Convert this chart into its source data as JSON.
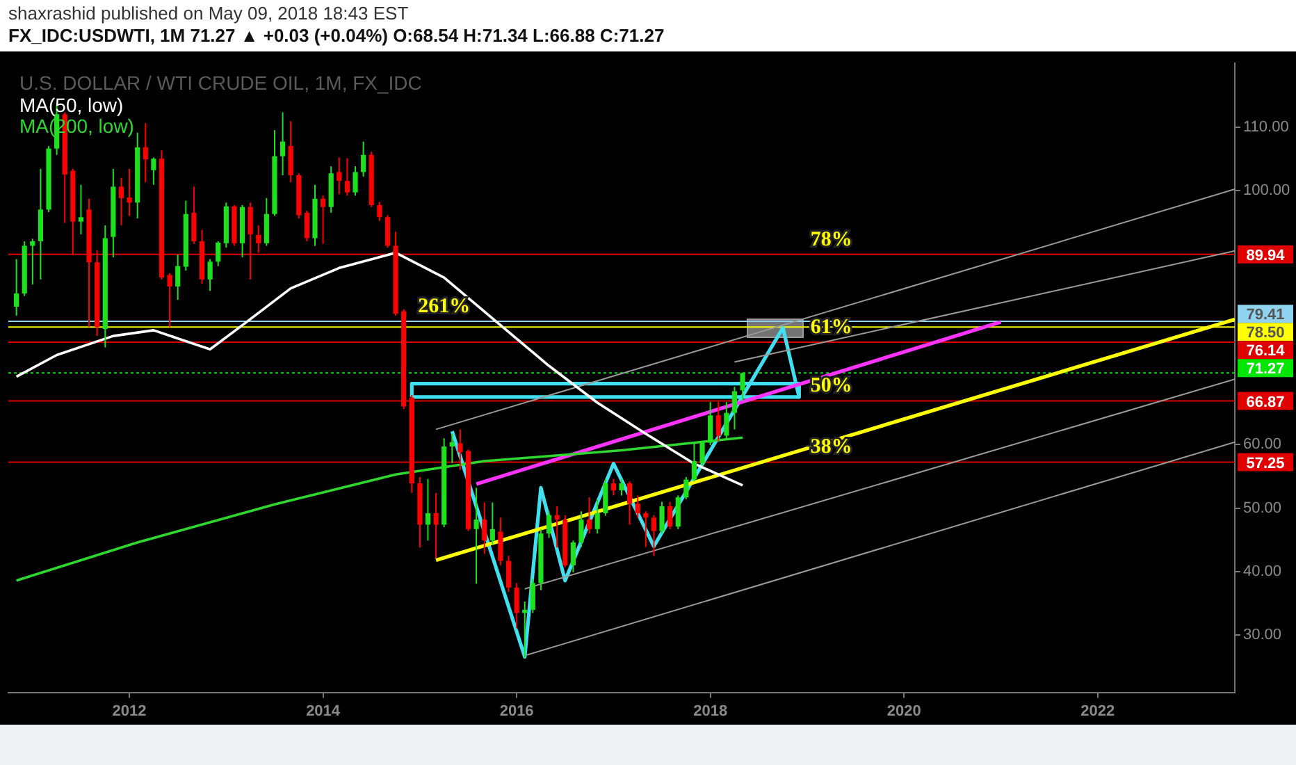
{
  "chart_data": {
    "type": "candlestick",
    "title": "U.S. DOLLAR / WTI CRUDE OIL, 1M, FX_IDC",
    "subtitle": "FX_IDC:USDWTI, 1M 71.27 ▲ +0.03 (+0.04%) O:68.54 H:71.34 L:66.88 C:71.27",
    "annotations": [
      "shaxrashid published on May 09, 2018 18:43 EST",
      {
        "text": "78%",
        "x": "2019-04",
        "y": 89.94
      },
      {
        "text": "261%",
        "x": "2015-04",
        "y": 79.41
      },
      {
        "text": "61%",
        "x": "2019-04",
        "y": 76.14
      },
      {
        "text": "50%",
        "x": "2019-04",
        "y": 66.87
      },
      {
        "text": "38%",
        "x": "2019-04",
        "y": 57.25
      }
    ],
    "x": [
      "2010-11",
      "2010-12",
      "2011-01",
      "2011-02",
      "2011-03",
      "2011-04",
      "2011-05",
      "2011-06",
      "2011-07",
      "2011-08",
      "2011-09",
      "2011-10",
      "2011-11",
      "2011-12",
      "2012-01",
      "2012-02",
      "2012-03",
      "2012-04",
      "2012-05",
      "2012-06",
      "2012-07",
      "2012-08",
      "2012-09",
      "2012-10",
      "2012-11",
      "2012-12",
      "2013-01",
      "2013-02",
      "2013-03",
      "2013-04",
      "2013-05",
      "2013-06",
      "2013-07",
      "2013-08",
      "2013-09",
      "2013-10",
      "2013-11",
      "2013-12",
      "2014-01",
      "2014-02",
      "2014-03",
      "2014-04",
      "2014-05",
      "2014-06",
      "2014-07",
      "2014-08",
      "2014-09",
      "2014-10",
      "2014-11",
      "2014-12",
      "2015-01",
      "2015-02",
      "2015-03",
      "2015-04",
      "2015-05",
      "2015-06",
      "2015-07",
      "2015-08",
      "2015-09",
      "2015-10",
      "2015-11",
      "2015-12",
      "2016-01",
      "2016-02",
      "2016-03",
      "2016-04",
      "2016-05",
      "2016-06",
      "2016-07",
      "2016-08",
      "2016-09",
      "2016-10",
      "2016-11",
      "2016-12",
      "2017-01",
      "2017-02",
      "2017-03",
      "2017-04",
      "2017-05",
      "2017-06",
      "2017-07",
      "2017-08",
      "2017-09",
      "2017-10",
      "2017-11",
      "2017-12",
      "2018-01",
      "2018-02",
      "2018-03",
      "2018-04",
      "2018-05"
    ],
    "ohlc": [
      [
        81.7,
        89.2,
        80.3,
        83.8
      ],
      [
        83.8,
        92.0,
        83.4,
        91.3
      ],
      [
        91.3,
        92.4,
        85.2,
        92.0
      ],
      [
        92.0,
        103.4,
        86.0,
        97.0
      ],
      [
        97.0,
        107.0,
        96.6,
        106.6
      ],
      [
        106.6,
        113.4,
        105.6,
        112.0
      ],
      [
        112.0,
        112.3,
        94.9,
        102.5
      ],
      [
        103.1,
        103.4,
        89.9,
        95.1
      ],
      [
        95.1,
        100.9,
        93.1,
        95.8
      ],
      [
        97.0,
        98.7,
        78.5,
        88.7
      ],
      [
        88.7,
        90.6,
        77.1,
        78.5
      ],
      [
        78.2,
        94.5,
        75.3,
        92.5
      ],
      [
        92.7,
        103.4,
        89.5,
        100.6
      ],
      [
        100.6,
        102.0,
        94.5,
        98.8
      ],
      [
        98.9,
        103.4,
        96.0,
        98.1
      ],
      [
        98.1,
        109.1,
        95.6,
        106.8
      ],
      [
        106.8,
        110.6,
        101.3,
        104.9
      ],
      [
        103.2,
        105.2,
        100.9,
        105.0
      ],
      [
        105.0,
        106.3,
        86.0,
        86.3
      ],
      [
        86.7,
        87.0,
        78.5,
        84.9
      ],
      [
        84.9,
        89.9,
        82.8,
        88.1
      ],
      [
        88.0,
        98.4,
        87.4,
        96.3
      ],
      [
        96.5,
        100.6,
        91.6,
        92.0
      ],
      [
        92.0,
        93.8,
        85.3,
        86.0
      ],
      [
        86.0,
        89.2,
        84.2,
        88.8
      ],
      [
        88.8,
        92.0,
        88.1,
        91.8
      ],
      [
        91.7,
        98.1,
        91.0,
        97.5
      ],
      [
        97.5,
        97.7,
        91.3,
        91.7
      ],
      [
        91.7,
        97.7,
        89.5,
        97.4
      ],
      [
        97.4,
        98.1,
        86.0,
        93.1
      ],
      [
        93.0,
        94.5,
        90.2,
        91.7
      ],
      [
        91.7,
        98.8,
        91.3,
        96.3
      ],
      [
        96.3,
        109.5,
        96.0,
        105.4
      ],
      [
        105.4,
        112.3,
        102.4,
        107.7
      ],
      [
        107.0,
        110.9,
        101.3,
        102.4
      ],
      [
        102.4,
        102.7,
        95.6,
        96.1
      ],
      [
        96.5,
        96.8,
        92.0,
        92.5
      ],
      [
        92.5,
        100.9,
        91.3,
        98.7
      ],
      [
        98.7,
        99.2,
        91.6,
        97.4
      ],
      [
        97.4,
        103.8,
        96.5,
        102.7
      ],
      [
        102.9,
        105.2,
        99.4,
        101.5
      ],
      [
        101.5,
        105.1,
        99.2,
        99.7
      ],
      [
        99.7,
        103.8,
        99.2,
        102.9
      ],
      [
        102.9,
        107.7,
        102.2,
        105.6
      ],
      [
        105.6,
        106.1,
        97.4,
        97.7
      ],
      [
        97.7,
        98.2,
        95.2,
        95.8
      ],
      [
        95.8,
        96.1,
        91.0,
        91.3
      ],
      [
        91.3,
        93.5,
        80.3,
        80.6
      ],
      [
        81.0,
        81.3,
        65.6,
        66.0
      ],
      [
        67.4,
        67.8,
        52.4,
        53.9
      ],
      [
        53.9,
        54.9,
        43.8,
        47.4
      ],
      [
        47.4,
        54.6,
        44.9,
        49.2
      ],
      [
        49.2,
        52.4,
        42.1,
        47.4
      ],
      [
        47.4,
        61.0,
        47.0,
        59.7
      ],
      [
        59.7,
        61.7,
        57.1,
        60.4
      ],
      [
        60.2,
        62.4,
        56.0,
        58.8
      ],
      [
        59.0,
        59.2,
        46.4,
        46.7
      ],
      [
        46.7,
        53.2,
        38.1,
        48.2
      ],
      [
        48.2,
        50.9,
        42.8,
        44.9
      ],
      [
        44.9,
        50.9,
        44.2,
        46.7
      ],
      [
        46.3,
        48.5,
        41.0,
        41.7
      ],
      [
        41.7,
        42.5,
        36.8,
        37.5
      ],
      [
        37.5,
        38.2,
        31.1,
        33.5
      ],
      [
        33.5,
        35.3,
        26.4,
        34.0
      ],
      [
        34.0,
        38.9,
        33.5,
        38.2
      ],
      [
        38.2,
        46.7,
        37.1,
        46.0
      ],
      [
        46.0,
        49.5,
        45.3,
        48.9
      ],
      [
        48.9,
        50.3,
        43.8,
        48.2
      ],
      [
        48.2,
        48.9,
        40.7,
        41.0
      ],
      [
        41.0,
        44.9,
        39.9,
        44.6
      ],
      [
        44.6,
        49.5,
        43.9,
        48.2
      ],
      [
        48.2,
        51.7,
        46.0,
        46.7
      ],
      [
        46.7,
        51.4,
        46.0,
        49.2
      ],
      [
        49.2,
        54.6,
        48.8,
        53.9
      ],
      [
        53.9,
        54.6,
        52.0,
        52.8
      ],
      [
        52.8,
        54.6,
        52.0,
        53.9
      ],
      [
        53.9,
        54.2,
        47.4,
        50.7
      ],
      [
        50.7,
        52.0,
        48.5,
        49.2
      ],
      [
        49.2,
        49.5,
        43.9,
        48.5
      ],
      [
        48.5,
        48.9,
        42.5,
        46.4
      ],
      [
        46.4,
        51.0,
        46.0,
        50.3
      ],
      [
        50.3,
        51.0,
        46.7,
        47.1
      ],
      [
        47.1,
        52.0,
        46.7,
        51.7
      ],
      [
        51.7,
        54.9,
        51.4,
        54.5
      ],
      [
        54.5,
        60.2,
        54.2,
        57.4
      ],
      [
        57.1,
        60.6,
        56.7,
        60.3
      ],
      [
        60.3,
        66.7,
        59.9,
        64.6
      ],
      [
        64.6,
        66.7,
        60.6,
        61.4
      ],
      [
        61.4,
        66.7,
        61.0,
        65.0
      ],
      [
        65.0,
        69.1,
        62.4,
        68.4
      ],
      [
        68.54,
        71.34,
        66.88,
        71.27
      ]
    ],
    "colors": [
      "#1ee01e",
      "#1ee01e",
      "#1ee01e",
      "#1ee01e",
      "#1ee01e",
      "#1ee01e",
      "#ff0000",
      "#ff0000",
      "#1ee01e",
      "#ff0000",
      "#ff0000",
      "#1ee01e",
      "#1ee01e",
      "#ff0000",
      "#ff0000",
      "#1ee01e",
      "#ff0000",
      "#1ee01e",
      "#ff0000",
      "#ff0000",
      "#1ee01e",
      "#1ee01e",
      "#ff0000",
      "#ff0000",
      "#1ee01e",
      "#1ee01e",
      "#1ee01e",
      "#ff0000",
      "#1ee01e",
      "#ff0000",
      "#ff0000",
      "#1ee01e",
      "#1ee01e",
      "#1ee01e",
      "#ff0000",
      "#ff0000",
      "#ff0000",
      "#1ee01e",
      "#ff0000",
      "#1ee01e",
      "#ff0000",
      "#ff0000",
      "#1ee01e",
      "#1ee01e",
      "#ff0000",
      "#ff0000",
      "#ff0000",
      "#ff0000",
      "#ff0000",
      "#ff0000",
      "#ff0000",
      "#1ee01e",
      "#ff0000",
      "#1ee01e",
      "#1ee01e",
      "#ff0000",
      "#ff0000",
      "#1ee01e",
      "#ff0000",
      "#1ee01e",
      "#ff0000",
      "#ff0000",
      "#ff0000",
      "#1ee01e",
      "#1ee01e",
      "#1ee01e",
      "#1ee01e",
      "#ff0000",
      "#ff0000",
      "#1ee01e",
      "#1ee01e",
      "#ff0000",
      "#1ee01e",
      "#1ee01e",
      "#ff0000",
      "#1ee01e",
      "#ff0000",
      "#ff0000",
      "#ff0000",
      "#ff0000",
      "#1ee01e",
      "#ff0000",
      "#1ee01e",
      "#1ee01e",
      "#1ee01e",
      "#1ee01e",
      "#1ee01e",
      "#ff0000",
      "#1ee01e",
      "#1ee01e",
      "#1ee01e"
    ],
    "series": [
      {
        "name": "MA(50, low)",
        "type": "line",
        "color": "#ffffff",
        "x": [
          "2010-11",
          "2011-04",
          "2011-11",
          "2012-04",
          "2012-11",
          "2013-03",
          "2013-09",
          "2014-03",
          "2014-10",
          "2015-04",
          "2015-11",
          "2016-05",
          "2016-11",
          "2017-05",
          "2017-11",
          "2018-05"
        ],
        "values": [
          70.7,
          74.1,
          77.1,
          78.0,
          75.0,
          78.8,
          84.6,
          87.8,
          90.2,
          86.3,
          78.8,
          72.4,
          66.6,
          61.7,
          57.0,
          53.6
        ]
      },
      {
        "name": "MA(200, low)",
        "type": "line",
        "color": "#2ed82e",
        "x": [
          "2010-11",
          "2012-02",
          "2013-07",
          "2014-10",
          "2015-09",
          "2017-02",
          "2018-05"
        ],
        "values": [
          38.6,
          44.6,
          50.6,
          55.3,
          57.4,
          59.1,
          61.1
        ]
      },
      {
        "type": "line",
        "color": "#ffff00",
        "x": [
          "2015-03",
          "2023-06"
        ],
        "values": [
          41.8,
          79.7
        ]
      },
      {
        "type": "line",
        "color": "#ff33ff",
        "x": [
          "2015-08",
          "2021-01"
        ],
        "values": [
          53.8,
          79.3
        ]
      },
      {
        "type": "line",
        "color": "#9a9a9a",
        "x": [
          "2015-03",
          "2023-06"
        ],
        "values": [
          62.4,
          100.2
        ]
      },
      {
        "type": "line",
        "color": "#9a9a9a",
        "x": [
          "2018-04",
          "2023-06"
        ],
        "values": [
          73.0,
          90.5
        ]
      },
      {
        "type": "line",
        "color": "#9a9a9a",
        "x": [
          "2016-02",
          "2023-06"
        ],
        "values": [
          37.3,
          70.3
        ]
      },
      {
        "type": "line",
        "color": "#9a9a9a",
        "x": [
          "2016-02",
          "2023-06"
        ],
        "values": [
          26.8,
          60.4
        ]
      },
      {
        "type": "line",
        "color": "#40e0f0",
        "x": [
          "2015-05",
          "2016-02",
          "2016-04",
          "2016-07",
          "2017-01",
          "2017-06",
          "2018-10",
          "2018-12"
        ],
        "values": [
          62.1,
          26.6,
          53.2,
          38.6,
          57.0,
          44.0,
          78.4,
          67.5
        ]
      },
      {
        "type": "line",
        "color": "#40e0f0",
        "x": [
          "2014-12",
          "2014-12",
          "2018-12",
          "2018-12"
        ],
        "values": [
          67.5,
          69.6,
          69.6,
          67.5
        ]
      },
      {
        "type": "line",
        "color": "#40e0f0",
        "x": [
          "2014-12",
          "2018-12"
        ],
        "values": [
          67.5,
          67.5
        ]
      }
    ],
    "ref_lines": [
      {
        "axis": "y",
        "value": 89.94,
        "label": "89.94",
        "color": "#e00000"
      },
      {
        "axis": "y",
        "value": 79.41,
        "label": "79.41",
        "color": "#8fd3f0"
      },
      {
        "axis": "y",
        "value": 78.5,
        "label": "78.50",
        "color": "#ffff00"
      },
      {
        "axis": "y",
        "value": 76.14,
        "label": "76.14",
        "color": "#e00000"
      },
      {
        "axis": "y",
        "value": 71.27,
        "label": "71.27",
        "color": "#00e600",
        "line_style": "dotted"
      },
      {
        "axis": "y",
        "value": 66.87,
        "label": "66.87",
        "color": "#e00000"
      },
      {
        "axis": "y",
        "value": 57.25,
        "label": "57.25",
        "color": "#e00000"
      }
    ],
    "xlim": [
      "2010-10",
      "2023-06"
    ],
    "xticks": [
      "2012",
      "2014",
      "2016",
      "2018",
      "2020",
      "2022"
    ],
    "ylim": [
      21,
      120
    ],
    "yticks": [
      {
        "value": 30,
        "label": "30.00"
      },
      {
        "value": 40,
        "label": "40.00"
      },
      {
        "value": 50,
        "label": "50.00"
      },
      {
        "value": 60,
        "label": "60.00"
      },
      {
        "value": 100,
        "label": "100.00"
      },
      {
        "value": 110,
        "label": "110.00"
      }
    ],
    "legend": "top left"
  }
}
